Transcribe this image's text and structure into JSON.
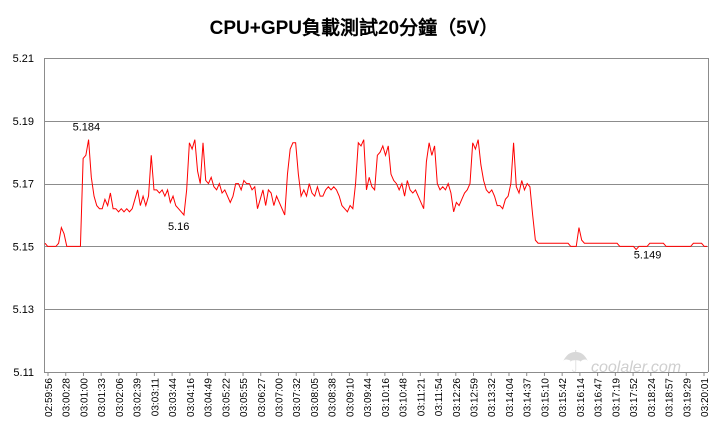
{
  "chart_data": {
    "type": "line",
    "title": "CPU+GPU負載測試20分鐘（5V）",
    "ylim": [
      5.11,
      5.21
    ],
    "yticks": [
      "5.11",
      "5.13",
      "5.15",
      "5.17",
      "5.19",
      "5.21"
    ],
    "ytick_values": [
      5.11,
      5.13,
      5.15,
      5.17,
      5.19,
      5.21
    ],
    "grid": true,
    "legend": "none",
    "x_tick_labels": [
      "02:59:56",
      "03:00:28",
      "03:01:00",
      "03:01:33",
      "03:02:06",
      "03:02:39",
      "03:03:11",
      "03:03:44",
      "03:04:16",
      "03:04:49",
      "03:05:22",
      "03:05:55",
      "03:06:27",
      "03:07:00",
      "03:07:32",
      "03:08:05",
      "03:08:38",
      "03:09:10",
      "03:09:44",
      "03:10:16",
      "03:10:48",
      "03:11:21",
      "03:11:54",
      "03:12:26",
      "03:12:59",
      "03:13:32",
      "03:14:04",
      "03:14:37",
      "03:15:10",
      "03:15:42",
      "03:16:14",
      "03:16:47",
      "03:17:19",
      "03:17:52",
      "03:18:24",
      "03:18:57",
      "03:19:29",
      "03:20:01"
    ],
    "series": [
      {
        "color": "#ff0000",
        "values": [
          5.151,
          5.15,
          5.15,
          5.15,
          5.15,
          5.151,
          5.156,
          5.154,
          5.15,
          5.15,
          5.15,
          5.15,
          5.15,
          5.15,
          5.178,
          5.179,
          5.184,
          5.172,
          5.166,
          5.163,
          5.162,
          5.162,
          5.165,
          5.163,
          5.167,
          5.162,
          5.162,
          5.161,
          5.162,
          5.161,
          5.162,
          5.161,
          5.162,
          5.165,
          5.168,
          5.163,
          5.166,
          5.163,
          5.166,
          5.179,
          5.168,
          5.168,
          5.167,
          5.168,
          5.166,
          5.168,
          5.164,
          5.166,
          5.163,
          5.162,
          5.161,
          5.16,
          5.168,
          5.183,
          5.181,
          5.184,
          5.174,
          5.17,
          5.183,
          5.171,
          5.17,
          5.172,
          5.169,
          5.168,
          5.17,
          5.167,
          5.168,
          5.166,
          5.164,
          5.166,
          5.17,
          5.17,
          5.168,
          5.171,
          5.17,
          5.17,
          5.168,
          5.169,
          5.162,
          5.165,
          5.168,
          5.163,
          5.168,
          5.167,
          5.163,
          5.166,
          5.164,
          5.162,
          5.16,
          5.173,
          5.181,
          5.183,
          5.183,
          5.173,
          5.166,
          5.168,
          5.166,
          5.17,
          5.167,
          5.166,
          5.169,
          5.166,
          5.166,
          5.168,
          5.169,
          5.168,
          5.169,
          5.168,
          5.166,
          5.163,
          5.162,
          5.161,
          5.163,
          5.162,
          5.17,
          5.183,
          5.182,
          5.184,
          5.168,
          5.172,
          5.169,
          5.168,
          5.179,
          5.18,
          5.182,
          5.179,
          5.182,
          5.173,
          5.171,
          5.17,
          5.168,
          5.17,
          5.166,
          5.171,
          5.168,
          5.167,
          5.168,
          5.166,
          5.164,
          5.162,
          5.177,
          5.183,
          5.179,
          5.182,
          5.17,
          5.168,
          5.169,
          5.168,
          5.17,
          5.167,
          5.161,
          5.164,
          5.163,
          5.165,
          5.167,
          5.168,
          5.17,
          5.183,
          5.181,
          5.184,
          5.176,
          5.171,
          5.168,
          5.167,
          5.168,
          5.166,
          5.163,
          5.163,
          5.162,
          5.165,
          5.166,
          5.17,
          5.183,
          5.169,
          5.167,
          5.171,
          5.168,
          5.17,
          5.169,
          5.16,
          5.152,
          5.151,
          5.151,
          5.151,
          5.151,
          5.151,
          5.151,
          5.151,
          5.151,
          5.151,
          5.151,
          5.151,
          5.151,
          5.15,
          5.15,
          5.15,
          5.156,
          5.152,
          5.151,
          5.151,
          5.151,
          5.151,
          5.151,
          5.151,
          5.151,
          5.151,
          5.151,
          5.151,
          5.151,
          5.151,
          5.151,
          5.15,
          5.15,
          5.15,
          5.15,
          5.15,
          5.15,
          5.149,
          5.15,
          5.15,
          5.15,
          5.15,
          5.151,
          5.151,
          5.151,
          5.151,
          5.151,
          5.151,
          5.15,
          5.15,
          5.15,
          5.15,
          5.15,
          5.15,
          5.15,
          5.15,
          5.15,
          5.15,
          5.151,
          5.151,
          5.151,
          5.151,
          5.15,
          5.15
        ]
      }
    ],
    "annotations": [
      {
        "text": "5.184",
        "index": 16
      },
      {
        "text": "5.16",
        "index": 51
      },
      {
        "text": "5.149",
        "index": 222
      }
    ]
  },
  "watermark": {
    "text": "coolaler.com"
  }
}
